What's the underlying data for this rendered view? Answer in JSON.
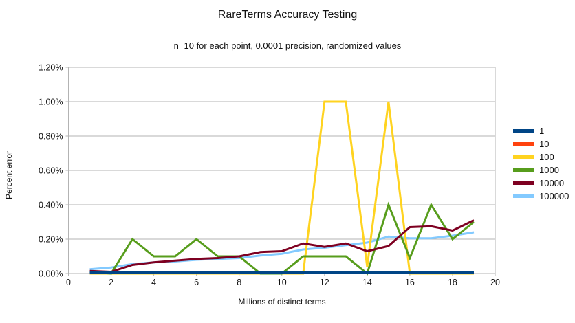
{
  "chart": {
    "title": "RareTerms Accuracy Testing",
    "subtitle": "n=10 for each point, 0.0001 precision, randomized values",
    "xlabel": "Millions of distinct terms",
    "ylabel": "Percent error"
  },
  "chart_data": {
    "type": "line",
    "title": "RareTerms Accuracy Testing",
    "subtitle": "n=10 for each point, 0.0001 precision, randomized values",
    "xlabel": "Millions of distinct terms",
    "ylabel": "Percent error",
    "xlim": [
      0,
      20
    ],
    "ylim": [
      0,
      1.2
    ],
    "x_tick_labels": [
      "0",
      "2",
      "4",
      "6",
      "8",
      "10",
      "12",
      "14",
      "16",
      "18",
      "20"
    ],
    "x_ticks": [
      0,
      2,
      4,
      6,
      8,
      10,
      12,
      14,
      16,
      18,
      20
    ],
    "y_tick_labels": [
      "0.00%",
      "0.20%",
      "0.40%",
      "0.60%",
      "0.80%",
      "1.00%",
      "1.20%"
    ],
    "y_ticks": [
      0,
      0.2,
      0.4,
      0.6,
      0.8,
      1.0,
      1.2
    ],
    "grid": true,
    "legend_position": "right",
    "values_unit": "percent",
    "x": [
      1,
      2,
      3,
      4,
      5,
      6,
      7,
      8,
      9,
      10,
      11,
      12,
      13,
      14,
      15,
      16,
      17,
      18,
      19
    ],
    "series": [
      {
        "name": "1",
        "color": "#004586",
        "values": [
          0.005,
          0.005,
          0.005,
          0.005,
          0.005,
          0.005,
          0.005,
          0.005,
          0.005,
          0.005,
          0.005,
          0.005,
          0.005,
          0.005,
          0.005,
          0.005,
          0.005,
          0.005,
          0.005
        ]
      },
      {
        "name": "10",
        "color": "#FF420E",
        "values": [
          0.005,
          0.005,
          0.005,
          0.005,
          0.005,
          0.005,
          0.005,
          0.005,
          0.005,
          0.005,
          0.005,
          0.005,
          0.005,
          0.005,
          0.005,
          0.005,
          0.005,
          0.005,
          0.005
        ]
      },
      {
        "name": "100",
        "color": "#FFD320",
        "values": [
          0.0,
          0.0,
          0.0,
          0.0,
          0.0,
          0.0,
          0.0,
          0.0,
          0.0,
          0.0,
          0.0,
          1.0,
          1.0,
          0.04,
          1.0,
          0.0,
          0.0,
          0.0,
          0.0
        ]
      },
      {
        "name": "1000",
        "color": "#579D1C",
        "values": [
          0.01,
          0.0,
          0.2,
          0.1,
          0.1,
          0.2,
          0.1,
          0.1,
          0.0,
          0.0,
          0.1,
          0.1,
          0.1,
          0.0,
          0.4,
          0.09,
          0.4,
          0.2,
          0.3
        ]
      },
      {
        "name": "10000",
        "color": "#7E0021",
        "values": [
          0.015,
          0.01,
          0.05,
          0.065,
          0.075,
          0.085,
          0.09,
          0.1,
          0.125,
          0.13,
          0.175,
          0.155,
          0.175,
          0.13,
          0.16,
          0.27,
          0.275,
          0.25,
          0.31
        ]
      },
      {
        "name": "100000",
        "color": "#83CAFF",
        "values": [
          0.025,
          0.035,
          0.055,
          0.065,
          0.07,
          0.08,
          0.085,
          0.09,
          0.105,
          0.115,
          0.14,
          0.15,
          0.165,
          0.18,
          0.215,
          0.205,
          0.205,
          0.22,
          0.24
        ]
      }
    ],
    "draw_order": [
      "100000",
      "100",
      "1000",
      "10000",
      "10",
      "1"
    ],
    "grid_color": "#b3b3b3",
    "text_color": "#111111"
  }
}
